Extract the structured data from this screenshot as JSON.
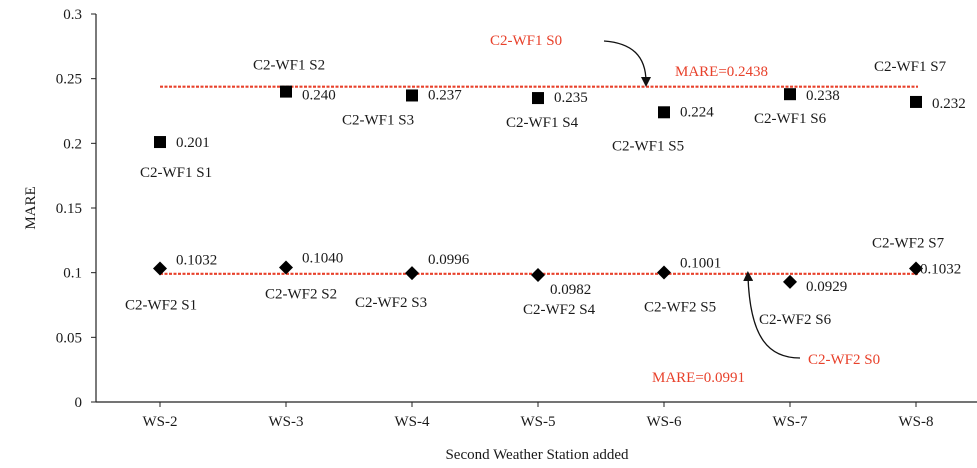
{
  "chart_data": {
    "type": "scatter",
    "xlabel": "Second Weather Station added",
    "ylabel": "MARE",
    "categories": [
      "WS-2",
      "WS-3",
      "WS-4",
      "WS-5",
      "WS-6",
      "WS-7",
      "WS-8"
    ],
    "ylim": [
      0,
      0.3
    ],
    "yticks": [
      "0",
      "0.05",
      "0.1",
      "0.15",
      "0.2",
      "0.25",
      "0.3"
    ],
    "series": [
      {
        "marker": "square",
        "values": [
          0.201,
          0.24,
          0.237,
          0.235,
          0.224,
          0.238,
          0.232
        ],
        "value_labels": [
          "0.201",
          "0.240",
          "0.237",
          "0.235",
          "0.224",
          "0.238",
          "0.232"
        ],
        "point_names": [
          "C2-WF1 S1",
          "C2-WF1 S2",
          "C2-WF1 S3",
          "C2-WF1 S4",
          "C2-WF1 S5",
          "C2-WF1 S6",
          "C2-WF1 S7"
        ]
      },
      {
        "marker": "diamond",
        "values": [
          0.1032,
          0.104,
          0.0996,
          0.0982,
          0.1001,
          0.0929,
          0.1032
        ],
        "value_labels": [
          "0.1032",
          "0.1040",
          "0.0996",
          "0.0982",
          "0.1001",
          "0.0929",
          "0.1032"
        ],
        "point_names": [
          "C2-WF2 S1",
          "C2-WF2 S2",
          "C2-WF2 S3",
          "C2-WF2 S4",
          "C2-WF2 S5",
          "C2-WF2 S6",
          "C2-WF2 S7"
        ]
      }
    ],
    "reference_lines": [
      {
        "name": "C2-WF1 S0",
        "value": 0.2438,
        "label": "MARE=0.2438",
        "color": "#e8412b",
        "style": "dashed"
      },
      {
        "name": "C2-WF2 S0",
        "value": 0.0991,
        "label": "MARE=0.0991",
        "color": "#e8412b",
        "style": "dashed"
      }
    ],
    "grid": false,
    "marker_color": "#000000",
    "annotation_color": "#e8412b"
  }
}
